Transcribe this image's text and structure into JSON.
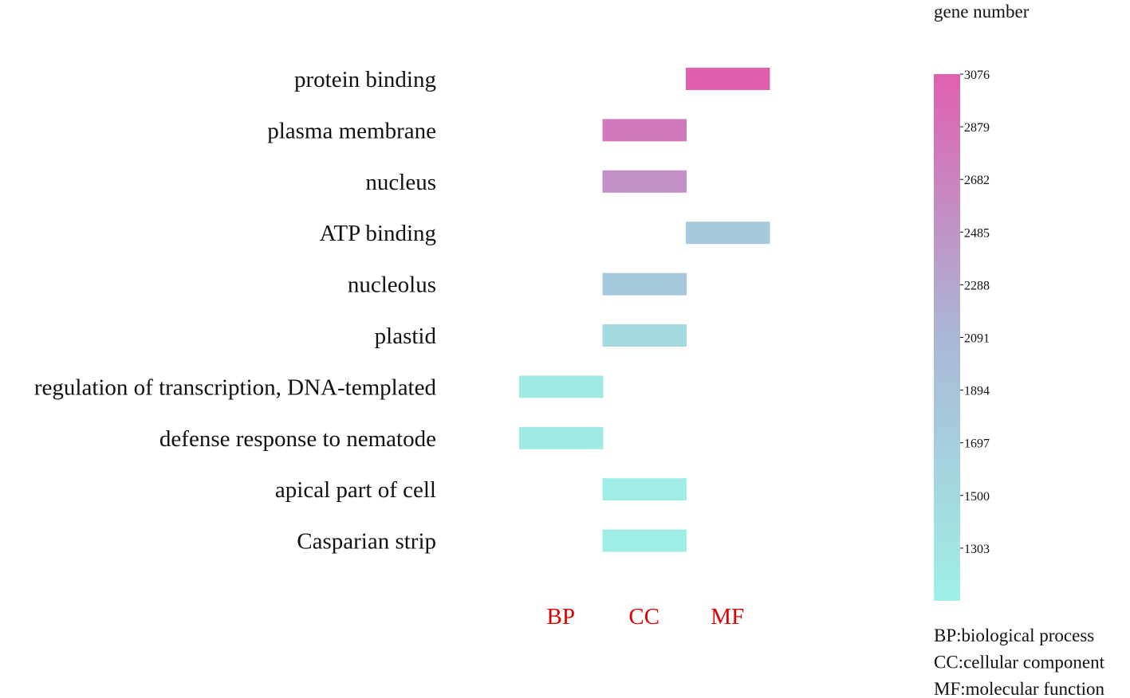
{
  "chart_data": {
    "type": "heatmap",
    "title": "",
    "terms": [
      "protein binding",
      "plasma membrane",
      "nucleus",
      "ATP binding",
      "nucleolus",
      "plastid",
      "regulation of transcription, DNA-templated",
      "defense response to nematode",
      "apical part of cell",
      "Casparian strip"
    ],
    "categories": [
      "BP",
      "CC",
      "MF"
    ],
    "category_color": "#e00000",
    "cells": [
      {
        "term": "protein binding",
        "category": "MF",
        "value": 3076
      },
      {
        "term": "plasma membrane",
        "category": "CC",
        "value": 2800
      },
      {
        "term": "nucleus",
        "category": "CC",
        "value": 2560
      },
      {
        "term": "ATP binding",
        "category": "MF",
        "value": 1850
      },
      {
        "term": "nucleolus",
        "category": "CC",
        "value": 1840
      },
      {
        "term": "plastid",
        "category": "CC",
        "value": 1560
      },
      {
        "term": "regulation of transcription, DNA-templated",
        "category": "BP",
        "value": 1300
      },
      {
        "term": "defense response to nematode",
        "category": "BP",
        "value": 1270
      },
      {
        "term": "apical part of cell",
        "category": "CC",
        "value": 1250
      },
      {
        "term": "Casparian strip",
        "category": "CC",
        "value": 1230
      }
    ],
    "colorbar": {
      "title": "gene number",
      "min": 1200,
      "max": 3076,
      "ticks": [
        3076,
        2879,
        2682,
        2485,
        2288,
        2091,
        1894,
        1697,
        1500,
        1303
      ],
      "colors": {
        "low": "#9ff0e6",
        "mid": "#a9b7d6",
        "high": "#e060b0"
      }
    },
    "legend_notes": [
      "BP:biological process",
      "CC:cellular component",
      "MF:molecular function"
    ]
  }
}
